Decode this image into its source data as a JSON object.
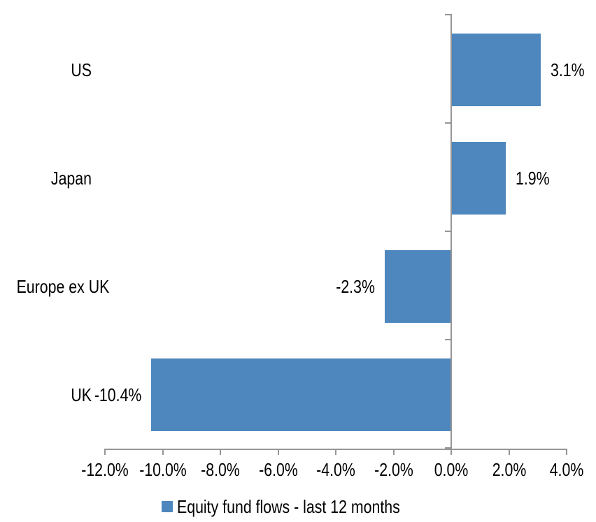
{
  "chart_data": {
    "type": "bar",
    "orientation": "horizontal",
    "title": "",
    "categories": [
      "US",
      "Japan",
      "Europe ex UK",
      "UK"
    ],
    "values": [
      3.1,
      1.9,
      -2.3,
      -10.4
    ],
    "data_labels": [
      "3.1%",
      "1.9%",
      "-2.3%",
      "-10.4%"
    ],
    "series_name": "Equity fund flows - last 12 months",
    "xlim": [
      -12,
      4
    ],
    "x_ticks": [
      -12,
      -10,
      -8,
      -6,
      -4,
      -2,
      0,
      2,
      4
    ],
    "x_tick_labels": [
      "-12.0%",
      "-10.0%",
      "-8.0%",
      "-6.0%",
      "-4.0%",
      "-2.0%",
      "0.0%",
      "2.0%",
      "4.0%"
    ],
    "grid": false,
    "legend_position": "bottom",
    "bar_color": "#4D87BE",
    "axis_color": "#969696",
    "text_color": "#000000",
    "background_color": "#FFFFFF"
  }
}
